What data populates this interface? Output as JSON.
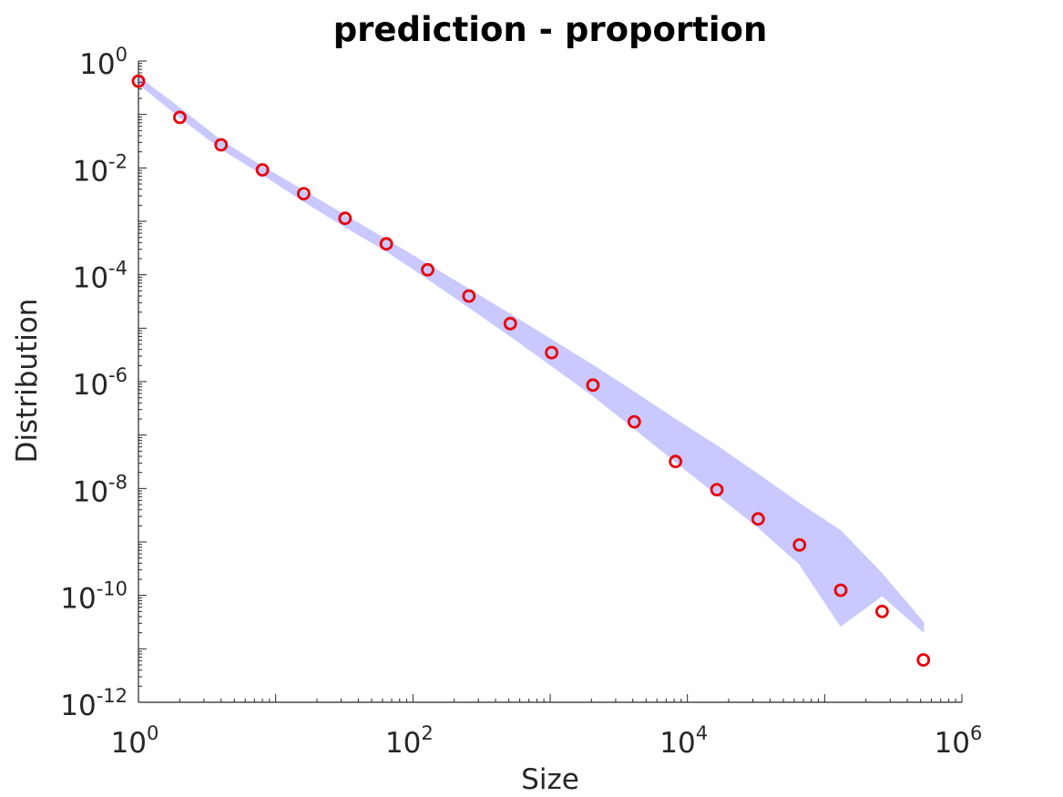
{
  "chart_data": {
    "type": "scatter",
    "title": "prediction - proportion",
    "xlabel": "Size",
    "ylabel": "Distribution",
    "xscale": "log",
    "yscale": "log",
    "xlim": [
      1,
      1000000
    ],
    "ylim": [
      1e-12,
      1
    ],
    "grid": false,
    "x_ticks": [
      {
        "base": "10",
        "exp": "0",
        "value": 1
      },
      {
        "base": "10",
        "exp": "2",
        "value": 100
      },
      {
        "base": "10",
        "exp": "4",
        "value": 10000
      },
      {
        "base": "10",
        "exp": "6",
        "value": 1000000
      }
    ],
    "y_ticks": [
      {
        "base": "10",
        "exp": "0",
        "value": 1
      },
      {
        "base": "10",
        "exp": "-2",
        "value": 0.01
      },
      {
        "base": "10",
        "exp": "-4",
        "value": 0.0001
      },
      {
        "base": "10",
        "exp": "-6",
        "value": 1e-06
      },
      {
        "base": "10",
        "exp": "-8",
        "value": 1e-08
      },
      {
        "base": "10",
        "exp": "-10",
        "value": 1e-10
      },
      {
        "base": "10",
        "exp": "-12",
        "value": 1e-12
      }
    ],
    "series": [
      {
        "type": "scatter",
        "marker": "circle-open",
        "color": "#e8000b",
        "x": [
          1,
          2,
          4,
          8,
          16,
          32,
          64,
          128,
          256,
          512,
          1024,
          2048,
          4096,
          8192,
          16384,
          32768,
          65536,
          131072,
          262144,
          524288
        ],
        "y": [
          0.42,
          0.088,
          0.027,
          0.0092,
          0.0033,
          0.00114,
          0.00038,
          0.000124,
          4e-05,
          1.22e-05,
          3.5e-06,
          8.6e-07,
          1.77e-07,
          3.2e-08,
          9.5e-09,
          2.7e-09,
          8.8e-10,
          1.25e-10,
          5e-11,
          6.2e-12
        ]
      },
      {
        "type": "band",
        "color": "#c9c9ff",
        "x": [
          1,
          2,
          4,
          8,
          16,
          32,
          64,
          128,
          256,
          512,
          1024,
          2048,
          4096,
          8192,
          16384,
          32768,
          65536,
          131072,
          131072,
          262144,
          524288
        ],
        "upper": [
          0.5,
          0.13,
          0.032,
          0.0105,
          0.0037,
          0.00128,
          0.00045,
          0.000155,
          5.3e-05,
          1.8e-05,
          6e-06,
          2e-06,
          6.3e-07,
          1.95e-07,
          6.2e-08,
          1.82e-08,
          5.2e-09,
          1.6e-09,
          1.6e-09,
          2.5e-10,
          3.1e-11
        ],
        "lower": [
          0.38,
          0.09,
          0.023,
          0.0076,
          0.0024,
          0.0008,
          0.00028,
          8.5e-05,
          2.5e-05,
          7.2e-06,
          2e-06,
          5.5e-07,
          1.35e-07,
          3.2e-08,
          7.8e-09,
          1.9e-09,
          3.9e-10,
          2.7e-11,
          2.7e-11,
          1e-10,
          2.1e-11
        ]
      }
    ]
  }
}
